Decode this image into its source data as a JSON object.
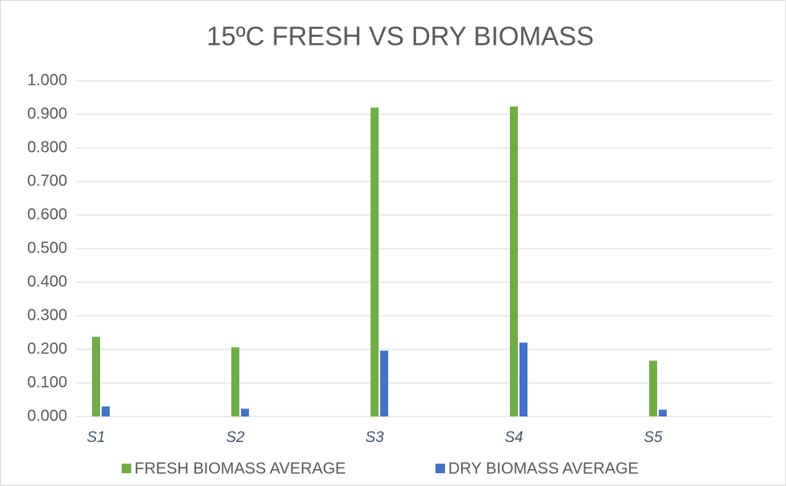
{
  "chart_data": {
    "type": "bar",
    "title": "15ºC FRESH VS DRY BIOMASS",
    "categories": [
      "S1",
      "S2",
      "S3",
      "S4",
      "S5"
    ],
    "series": [
      {
        "name": "FRESH BIOMASS AVERAGE",
        "color": "#70ad47",
        "values": [
          0.237,
          0.206,
          0.92,
          0.923,
          0.166
        ]
      },
      {
        "name": "DRY BIOMASS AVERAGE",
        "color": "#4472c4",
        "values": [
          0.03,
          0.023,
          0.196,
          0.22,
          0.02
        ]
      }
    ],
    "ylim": [
      0,
      1
    ],
    "yticks": [
      {
        "value": 0,
        "label": "0.000"
      },
      {
        "value": 0.1,
        "label": "0.100"
      },
      {
        "value": 0.2,
        "label": "0.200"
      },
      {
        "value": 0.3,
        "label": "0.300"
      },
      {
        "value": 0.4,
        "label": "0.400"
      },
      {
        "value": 0.5,
        "label": "0.500"
      },
      {
        "value": 0.6,
        "label": "0.600"
      },
      {
        "value": 0.7,
        "label": "0.700"
      },
      {
        "value": 0.8,
        "label": "0.800"
      },
      {
        "value": 0.9,
        "label": "0.900"
      },
      {
        "value": 1,
        "label": "1.000"
      }
    ],
    "grid": true,
    "legend": "bottom"
  }
}
